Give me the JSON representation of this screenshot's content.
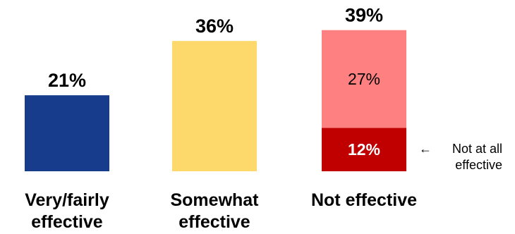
{
  "chart_data": {
    "type": "bar",
    "stacked": true,
    "categories": [
      [
        "Very/fairly",
        "effective"
      ],
      [
        "Somewhat",
        "effective"
      ],
      [
        "Not effective"
      ]
    ],
    "totals": [
      "21%",
      "36%",
      "39%"
    ],
    "bars": [
      {
        "total": 21,
        "segments": [
          {
            "value": 21,
            "label": "",
            "color": "#173c8c",
            "label_color": "#ffffff",
            "label_bold": false
          }
        ]
      },
      {
        "total": 36,
        "segments": [
          {
            "value": 36,
            "label": "",
            "color": "#fdd86b",
            "label_color": "#000000",
            "label_bold": false
          }
        ]
      },
      {
        "total": 39,
        "segments": [
          {
            "value": 12,
            "label": "12%",
            "color": "#c00000",
            "label_color": "#ffffff",
            "label_bold": true
          },
          {
            "value": 27,
            "label": "27%",
            "color": "#ff8080",
            "label_color": "#000000",
            "label_bold": false
          }
        ]
      }
    ],
    "annotation": {
      "arrow": "←",
      "lines": [
        "Not at all",
        "effective"
      ],
      "bar_index": 2,
      "segment_index": 0
    },
    "ylim": [
      0,
      40
    ],
    "grid": false,
    "legend": "none"
  }
}
